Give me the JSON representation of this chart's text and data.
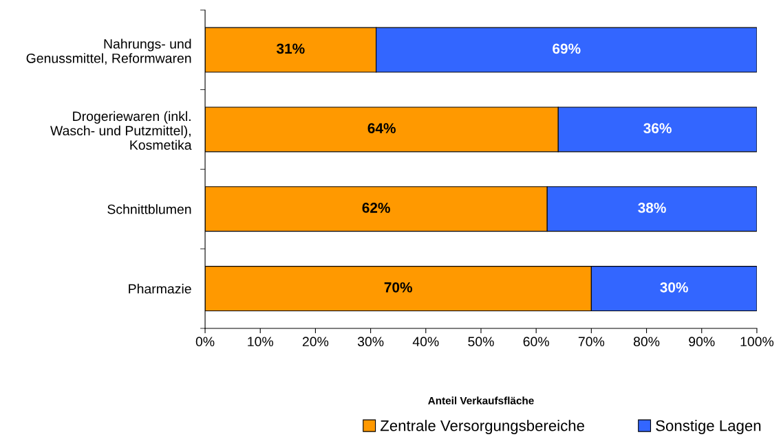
{
  "chart_data": {
    "type": "bar",
    "orientation": "horizontal",
    "stacked": true,
    "categories": [
      "Nahrungs- und\nGenussmittel, Reformwaren",
      "Drogeriewaren (inkl.\nWasch- und Putzmittel),\nKosmetika",
      "Schnittblumen",
      "Pharmazie"
    ],
    "series": [
      {
        "name": "Zentrale Versorgungsbereiche",
        "color": "#ff9900",
        "values": [
          31,
          64,
          62,
          70
        ],
        "value_labels": [
          "31%",
          "64%",
          "62%",
          "70%"
        ]
      },
      {
        "name": "Sonstige Lagen",
        "color": "#3366ff",
        "values": [
          69,
          36,
          38,
          30
        ],
        "value_labels": [
          "69%",
          "36%",
          "38%",
          "30%"
        ]
      }
    ],
    "xlim": [
      0,
      100
    ],
    "xticks": [
      {
        "value": 0,
        "label": "0%"
      },
      {
        "value": 10,
        "label": "10%"
      },
      {
        "value": 20,
        "label": "20%"
      },
      {
        "value": 30,
        "label": "30%"
      },
      {
        "value": 40,
        "label": "40%"
      },
      {
        "value": 50,
        "label": "50%"
      },
      {
        "value": 60,
        "label": "60%"
      },
      {
        "value": 70,
        "label": "70%"
      },
      {
        "value": 80,
        "label": "80%"
      },
      {
        "value": 90,
        "label": "90%"
      },
      {
        "value": 100,
        "label": "100%"
      }
    ],
    "xlabel": "Anteil Verkaufsfläche",
    "legend": "bottom",
    "grid": false
  }
}
